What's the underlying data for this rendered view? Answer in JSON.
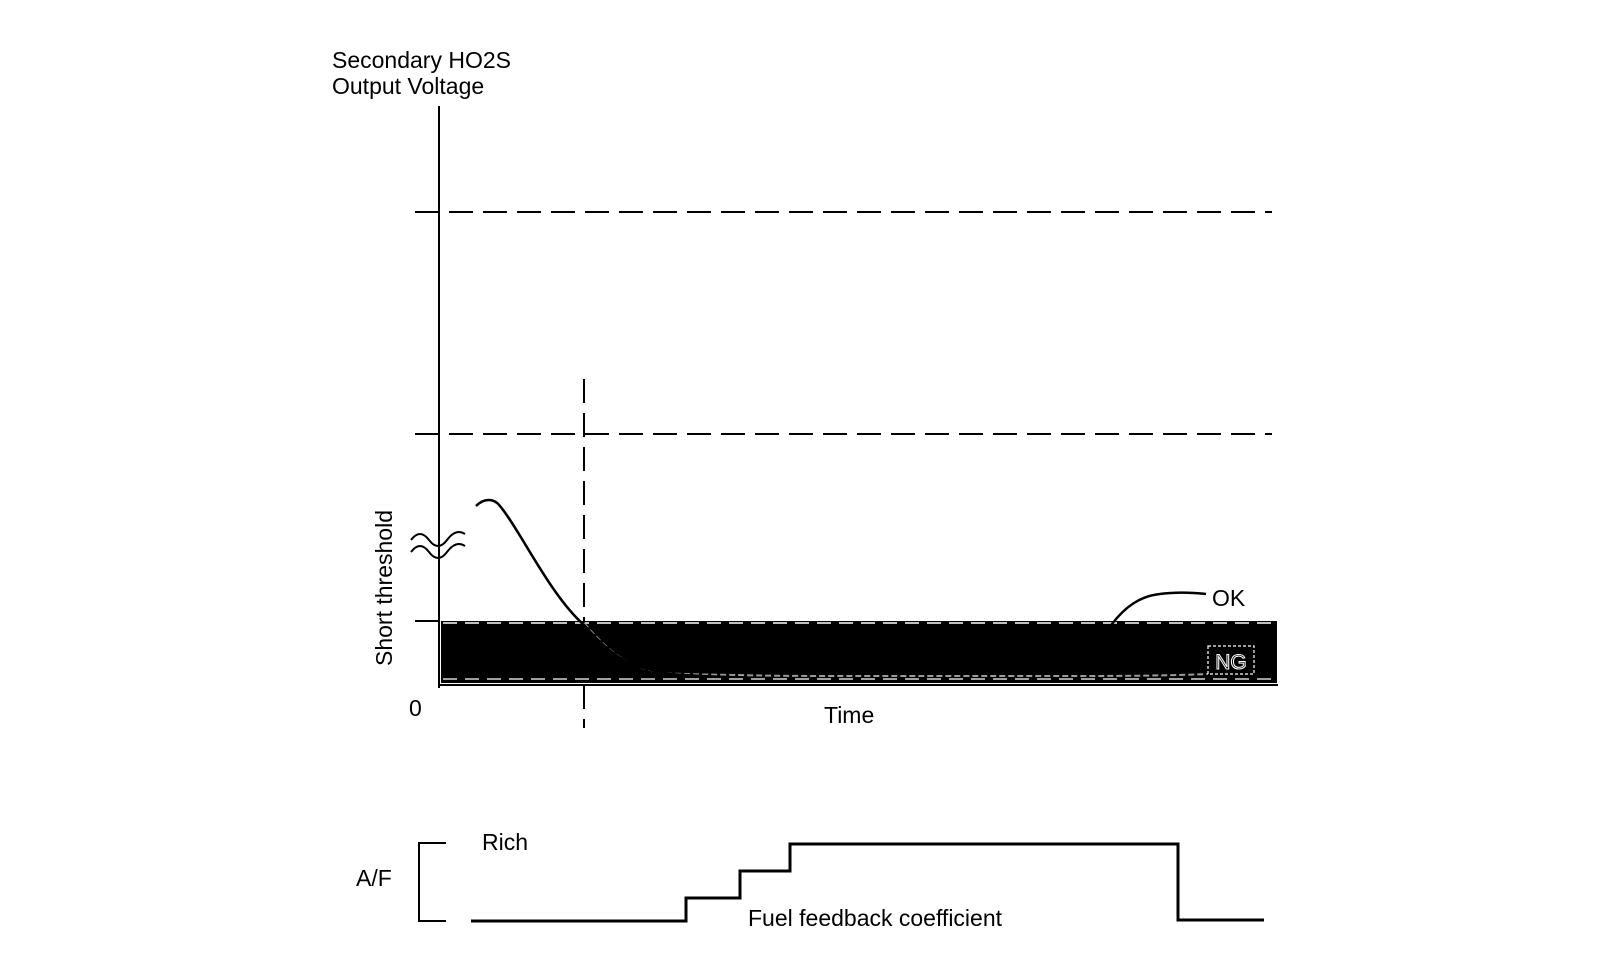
{
  "upper_plot": {
    "y_axis_label_line1": "Secondary HO2S",
    "y_axis_label_line2": "Output Voltage",
    "origin_label": "0",
    "x_axis_label": "Time",
    "threshold_label": "Short threshold",
    "ok_label": "OK",
    "ng_label": "NG"
  },
  "lower_plot": {
    "axis_label": "A/F",
    "rich_label": "Rich",
    "signal_label": "Fuel feedback coefficient"
  },
  "colors": {
    "line": "#000000",
    "background": "#ffffff",
    "ng_band": "#000000",
    "ng_trace": "#999999"
  }
}
